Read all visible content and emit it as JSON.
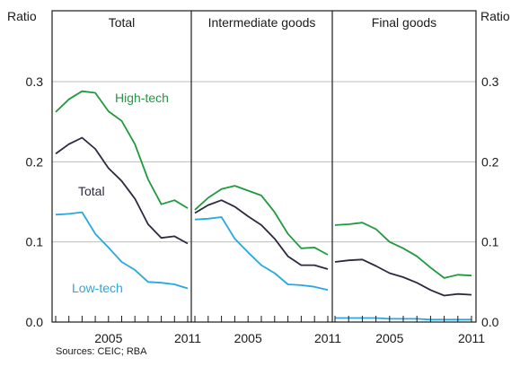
{
  "source_note": "Sources: CEIC; RBA",
  "left_axis_label": "Ratio",
  "right_axis_label": "Ratio",
  "chart_data": {
    "type": "line",
    "y_ticks": [
      0.0,
      0.1,
      0.2,
      0.3
    ],
    "y_tick_labels": [
      "0.0",
      "0.1",
      "0.2",
      "0.3"
    ],
    "ylim": [
      0,
      0.3
    ],
    "x_tick_labels": [
      "2005",
      "2011"
    ],
    "grid": true,
    "panels": [
      {
        "title": "Total",
        "x": [
          2001,
          2002,
          2003,
          2004,
          2005,
          2006,
          2007,
          2008,
          2009,
          2010,
          2011
        ],
        "series": [
          {
            "name": "High-tech",
            "color": "#1f9a3e",
            "values": [
              0.262,
              0.278,
              0.288,
              0.286,
              0.263,
              0.251,
              0.222,
              0.178,
              0.147,
              0.152,
              0.142
            ]
          },
          {
            "name": "Total",
            "color": "#2b2a3f",
            "values": [
              0.21,
              0.222,
              0.23,
              0.216,
              0.192,
              0.176,
              0.154,
              0.122,
              0.105,
              0.107,
              0.098
            ]
          },
          {
            "name": "Low-tech",
            "color": "#27a8e0",
            "values": [
              0.134,
              0.135,
              0.137,
              0.11,
              0.093,
              0.075,
              0.065,
              0.05,
              0.049,
              0.047,
              0.042
            ]
          }
        ],
        "series_labels": [
          "High-tech",
          "Total",
          "Low-tech"
        ]
      },
      {
        "title": "Intermediate goods",
        "x": [
          2001,
          2002,
          2003,
          2004,
          2005,
          2006,
          2007,
          2008,
          2009,
          2010,
          2011
        ],
        "series": [
          {
            "color": "#1f9a3e",
            "values": [
              0.14,
              0.155,
              0.166,
              0.17,
              0.164,
              0.158,
              0.137,
              0.11,
              0.092,
              0.093,
              0.084
            ]
          },
          {
            "color": "#2b2a3f",
            "values": [
              0.136,
              0.146,
              0.152,
              0.144,
              0.132,
              0.121,
              0.104,
              0.082,
              0.071,
              0.071,
              0.066
            ]
          },
          {
            "color": "#27a8e0",
            "values": [
              0.128,
              0.129,
              0.131,
              0.104,
              0.087,
              0.071,
              0.061,
              0.047,
              0.046,
              0.044,
              0.04
            ]
          }
        ]
      },
      {
        "title": "Final goods",
        "x": [
          2001,
          2002,
          2003,
          2004,
          2005,
          2006,
          2007,
          2008,
          2009,
          2010,
          2011
        ],
        "series": [
          {
            "color": "#1f9a3e",
            "values": [
              0.121,
              0.122,
              0.124,
              0.116,
              0.1,
              0.092,
              0.082,
              0.068,
              0.055,
              0.059,
              0.058
            ]
          },
          {
            "color": "#2b2a3f",
            "values": [
              0.075,
              0.077,
              0.078,
              0.07,
              0.061,
              0.056,
              0.049,
              0.04,
              0.033,
              0.035,
              0.034
            ]
          },
          {
            "color": "#27a8e0",
            "values": [
              0.005,
              0.005,
              0.005,
              0.005,
              0.004,
              0.004,
              0.004,
              0.003,
              0.003,
              0.003,
              0.003
            ]
          }
        ]
      }
    ]
  }
}
